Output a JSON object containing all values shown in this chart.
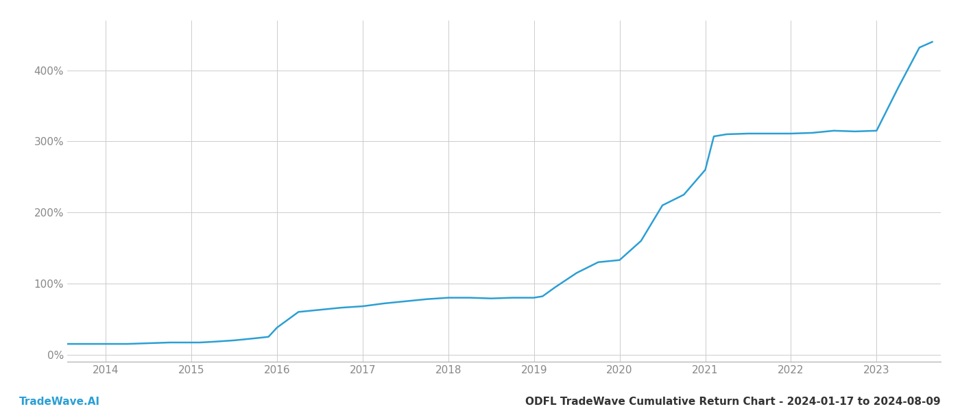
{
  "title": "ODFL TradeWave Cumulative Return Chart - 2024-01-17 to 2024-08-09",
  "watermark": "TradeWave.AI",
  "line_color": "#2b9fd4",
  "background_color": "#ffffff",
  "grid_color": "#cccccc",
  "x_years": [
    2014,
    2015,
    2016,
    2017,
    2018,
    2019,
    2020,
    2021,
    2022,
    2023
  ],
  "x_data": [
    2013.55,
    2014.0,
    2014.25,
    2014.5,
    2014.75,
    2015.0,
    2015.1,
    2015.25,
    2015.5,
    2015.75,
    2015.9,
    2016.0,
    2016.25,
    2016.5,
    2016.75,
    2017.0,
    2017.25,
    2017.5,
    2017.75,
    2018.0,
    2018.1,
    2018.25,
    2018.5,
    2018.75,
    2019.0,
    2019.1,
    2019.25,
    2019.5,
    2019.75,
    2020.0,
    2020.25,
    2020.5,
    2020.75,
    2021.0,
    2021.1,
    2021.25,
    2021.5,
    2021.75,
    2022.0,
    2022.25,
    2022.5,
    2022.75,
    2023.0,
    2023.25,
    2023.5,
    2023.65
  ],
  "y_data": [
    15,
    15,
    15,
    16,
    17,
    17,
    17,
    18,
    20,
    23,
    25,
    38,
    60,
    63,
    66,
    68,
    72,
    75,
    78,
    80,
    80,
    80,
    79,
    80,
    80,
    82,
    95,
    115,
    130,
    133,
    160,
    210,
    225,
    260,
    307,
    310,
    311,
    311,
    311,
    312,
    315,
    314,
    315,
    375,
    432,
    440
  ],
  "ylim": [
    -10,
    470
  ],
  "yticks": [
    0,
    100,
    200,
    300,
    400
  ],
  "ytick_labels": [
    "0%",
    "100%",
    "200%",
    "300%",
    "400%"
  ],
  "xlim": [
    2013.55,
    2023.75
  ],
  "xlabel_color": "#888888",
  "title_color": "#333333",
  "title_fontsize": 11,
  "watermark_fontsize": 11,
  "tick_fontsize": 11,
  "line_width": 1.8
}
